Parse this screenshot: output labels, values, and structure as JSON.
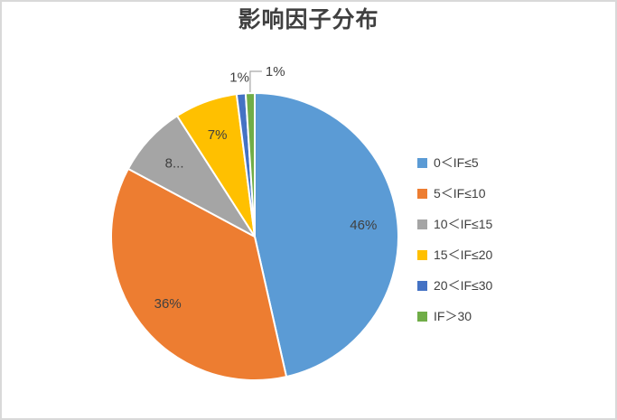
{
  "chart_data": {
    "type": "pie",
    "title": "影响因子分布",
    "legend_position": "right",
    "label_color": "#404040",
    "leader_line_color": "#A6A6A6",
    "border_color": "#D9D9D9",
    "background": "#FFFFFF",
    "segments": [
      {
        "name": "0＜IF≤5",
        "value": 46,
        "display_label": "46%",
        "color": "#5B9BD5",
        "label_placement": "inside"
      },
      {
        "name": "5＜IF≤10",
        "value": 36,
        "display_label": "36%",
        "color": "#ED7D31",
        "label_placement": "inside"
      },
      {
        "name": "10＜IF≤15",
        "value": 8,
        "display_label": "8...",
        "color": "#A5A5A5",
        "label_placement": "inside"
      },
      {
        "name": "15＜IF≤20",
        "value": 7,
        "display_label": "7%",
        "color": "#FFC000",
        "label_placement": "inside"
      },
      {
        "name": "20＜IF≤30",
        "value": 1,
        "display_label": "1%",
        "color": "#4472C4",
        "label_placement": "outside"
      },
      {
        "name": "IF＞30",
        "value": 1,
        "display_label": "1%",
        "color": "#70AD47",
        "label_placement": "callout"
      }
    ]
  }
}
